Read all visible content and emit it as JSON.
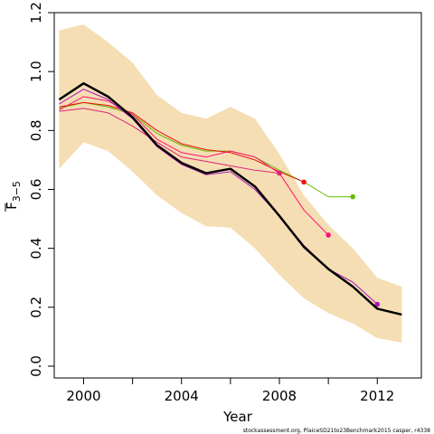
{
  "chart_data": {
    "type": "line",
    "xlabel": "Year",
    "ylabel": "F",
    "ylabel_sub": "3−5",
    "xlim": [
      1998.8,
      2013.8
    ],
    "ylim": [
      -0.04,
      1.2
    ],
    "xticks": [
      2000,
      2002,
      2004,
      2006,
      2008,
      2010,
      2012
    ],
    "xtick_labels": [
      "2000",
      "",
      "2004",
      "",
      "2008",
      "",
      "2012"
    ],
    "yticks": [
      0.0,
      0.2,
      0.4,
      0.6,
      0.8,
      1.0,
      1.2
    ],
    "ytick_labels": [
      "0.0",
      "0.2",
      "0.4",
      "0.6",
      "0.8",
      "1.0",
      "1.2"
    ],
    "grid": false,
    "band": {
      "color": "#f5deb3",
      "x": [
        1999,
        2000,
        2001,
        2002,
        2003,
        2004,
        2005,
        2006,
        2007,
        2008,
        2009,
        2010,
        2011,
        2012,
        2013
      ],
      "upper": [
        1.14,
        1.16,
        1.1,
        1.03,
        0.92,
        0.86,
        0.84,
        0.88,
        0.84,
        0.72,
        0.58,
        0.48,
        0.4,
        0.3,
        0.27
      ],
      "lower": [
        0.67,
        0.76,
        0.73,
        0.66,
        0.58,
        0.52,
        0.475,
        0.47,
        0.4,
        0.31,
        0.23,
        0.18,
        0.145,
        0.095,
        0.08
      ]
    },
    "series": [
      {
        "color": "#000000",
        "width": 2.5,
        "end_marker": false,
        "x": [
          1999,
          2000,
          2001,
          2002,
          2003,
          2004,
          2005,
          2006,
          2007,
          2008,
          2009,
          2010,
          2011,
          2012,
          2013
        ],
        "values": [
          0.905,
          0.96,
          0.915,
          0.845,
          0.75,
          0.69,
          0.655,
          0.67,
          0.61,
          0.51,
          0.405,
          0.33,
          0.27,
          0.195,
          0.175
        ]
      },
      {
        "color": "#66bb00",
        "width": 1,
        "end_marker": true,
        "x": [
          1999,
          2000,
          2001,
          2002,
          2003,
          2004,
          2005,
          2006,
          2007,
          2008,
          2009,
          2010,
          2011
        ],
        "values": [
          0.875,
          0.895,
          0.88,
          0.855,
          0.79,
          0.75,
          0.73,
          0.73,
          0.71,
          0.665,
          0.625,
          0.575,
          0.575
        ]
      },
      {
        "color": "#ee1111",
        "width": 1,
        "end_marker": true,
        "x": [
          1999,
          2000,
          2001,
          2002,
          2003,
          2004,
          2005,
          2006,
          2007,
          2008,
          2009
        ],
        "values": [
          0.88,
          0.895,
          0.885,
          0.86,
          0.8,
          0.755,
          0.735,
          0.725,
          0.7,
          0.66,
          0.625
        ]
      },
      {
        "color": "#ff1177",
        "width": 1,
        "end_marker": true,
        "x": [
          1999,
          2000,
          2001,
          2002,
          2003,
          2004,
          2005,
          2006,
          2007,
          2008,
          2009,
          2010
        ],
        "values": [
          0.87,
          0.915,
          0.9,
          0.855,
          0.77,
          0.725,
          0.71,
          0.73,
          0.71,
          0.655,
          0.53,
          0.445
        ]
      },
      {
        "color": "#dd2277",
        "width": 1,
        "end_marker": true,
        "x": [
          1999,
          2000,
          2001,
          2002,
          2003,
          2004,
          2005,
          2006,
          2007,
          2008
        ],
        "values": [
          0.865,
          0.875,
          0.86,
          0.815,
          0.76,
          0.71,
          0.695,
          0.68,
          0.665,
          0.655
        ]
      },
      {
        "color": "#aa11bb",
        "width": 1,
        "end_marker": true,
        "x": [
          1999,
          2000,
          2001,
          2002,
          2003,
          2004,
          2005,
          2006,
          2007,
          2008,
          2009,
          2010,
          2011,
          2012
        ],
        "values": [
          0.89,
          0.94,
          0.905,
          0.84,
          0.745,
          0.685,
          0.65,
          0.66,
          0.6,
          0.51,
          0.41,
          0.33,
          0.285,
          0.21
        ]
      }
    ],
    "footer": "stockassessment.org, PlaiceSD21to23Benchmark2015  casper,  r4338"
  }
}
